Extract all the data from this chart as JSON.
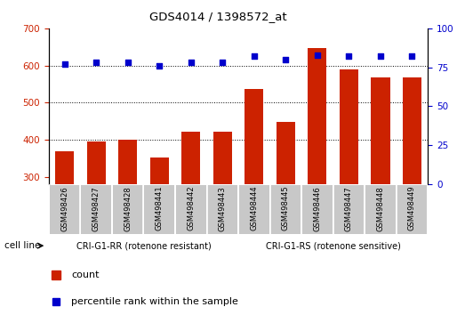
{
  "title": "GDS4014 / 1398572_at",
  "categories": [
    "GSM498426",
    "GSM498427",
    "GSM498428",
    "GSM498441",
    "GSM498442",
    "GSM498443",
    "GSM498444",
    "GSM498445",
    "GSM498446",
    "GSM498447",
    "GSM498448",
    "GSM498449"
  ],
  "bar_values": [
    370,
    395,
    400,
    352,
    422,
    422,
    537,
    447,
    648,
    590,
    568,
    568
  ],
  "percentile_values": [
    77,
    78,
    78,
    76,
    78,
    78,
    82,
    80,
    83,
    82,
    82,
    82
  ],
  "bar_color": "#cc2200",
  "dot_color": "#0000cc",
  "ylim_left": [
    280,
    700
  ],
  "ylim_right": [
    0,
    100
  ],
  "yticks_left": [
    300,
    400,
    500,
    600,
    700
  ],
  "yticks_right": [
    0,
    25,
    50,
    75,
    100
  ],
  "grid_values": [
    400,
    500,
    600
  ],
  "group1_label": "CRI-G1-RR (rotenone resistant)",
  "group2_label": "CRI-G1-RS (rotenone sensitive)",
  "group1_indices": [
    0,
    1,
    2,
    3,
    4,
    5
  ],
  "group2_indices": [
    6,
    7,
    8,
    9,
    10,
    11
  ],
  "cell_line_label": "cell line",
  "legend_bar_label": "count",
  "legend_dot_label": "percentile rank within the sample",
  "group_bg_color": "#90ee90",
  "tick_area_color": "#c8c8c8",
  "background_color": "#ffffff"
}
